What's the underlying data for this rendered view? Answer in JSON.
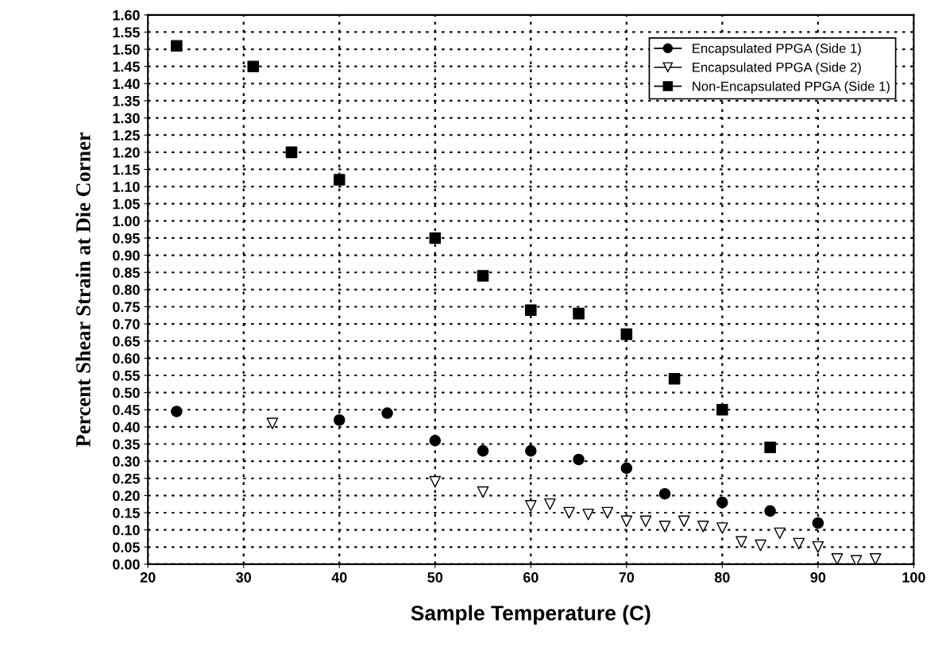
{
  "chart_data": {
    "type": "scatter",
    "xlabel": "Sample Temperature (C)",
    "ylabel": "Percent Shear Strain at Die Corner",
    "xlim": [
      20,
      100
    ],
    "xticks": [
      20,
      30,
      40,
      50,
      60,
      70,
      80,
      90,
      100
    ],
    "ylim": [
      0,
      1.6
    ],
    "yticks": [
      {
        "value": 0,
        "label": "0.00"
      },
      {
        "value": 0.05,
        "label": "0.05"
      },
      {
        "value": 0.1,
        "label": "0.10"
      },
      {
        "value": 0.15,
        "label": "0.15"
      },
      {
        "value": 0.2,
        "label": "0.20"
      },
      {
        "value": 0.25,
        "label": "0.25"
      },
      {
        "value": 0.3,
        "label": "0.30"
      },
      {
        "value": 0.35,
        "label": "0.35"
      },
      {
        "value": 0.4,
        "label": "0.40"
      },
      {
        "value": 0.45,
        "label": "0.45"
      },
      {
        "value": 0.5,
        "label": "0.50"
      },
      {
        "value": 0.55,
        "label": "0.55"
      },
      {
        "value": 0.6,
        "label": "0.60"
      },
      {
        "value": 0.65,
        "label": "0.65"
      },
      {
        "value": 0.7,
        "label": "0.70"
      },
      {
        "value": 0.75,
        "label": "0.75"
      },
      {
        "value": 0.8,
        "label": "0.80"
      },
      {
        "value": 0.85,
        "label": "0.85"
      },
      {
        "value": 0.9,
        "label": "0.90"
      },
      {
        "value": 0.95,
        "label": "0.95"
      },
      {
        "value": 1.0,
        "label": "1.00"
      },
      {
        "value": 1.05,
        "label": "1.05"
      },
      {
        "value": 1.1,
        "label": "1.10"
      },
      {
        "value": 1.15,
        "label": "1.15"
      },
      {
        "value": 1.2,
        "label": "1.20"
      },
      {
        "value": 1.25,
        "label": "1.25"
      },
      {
        "value": 1.3,
        "label": "1.30"
      },
      {
        "value": 1.35,
        "label": "1.35"
      },
      {
        "value": 1.4,
        "label": "1.40"
      },
      {
        "value": 1.45,
        "label": "1.45"
      },
      {
        "value": 1.5,
        "label": "1.50"
      },
      {
        "value": 1.55,
        "label": "1.55"
      },
      {
        "value": 1.6,
        "label": "1.60"
      }
    ],
    "grid": true,
    "legend": "top right",
    "series": [
      {
        "name": "Encapsulated PPGA (Side 1)",
        "color": "#000000",
        "marker": "circle",
        "x": [
          23,
          40,
          45,
          50,
          55,
          60,
          65,
          70,
          74,
          80,
          85,
          90
        ],
        "values": [
          0.445,
          0.42,
          0.44,
          0.36,
          0.33,
          0.33,
          0.305,
          0.28,
          0.205,
          0.18,
          0.155,
          0.12
        ]
      },
      {
        "name": "Encapsulated PPGA (Side 2)",
        "color": "#000000",
        "marker": "triangle",
        "x": [
          33,
          50,
          55,
          60,
          62,
          64,
          66,
          68,
          70,
          72,
          74,
          76,
          78,
          80,
          82,
          84,
          86,
          88,
          90,
          92,
          94,
          96
        ],
        "values": [
          0.41,
          0.24,
          0.21,
          0.17,
          0.175,
          0.15,
          0.145,
          0.15,
          0.125,
          0.125,
          0.11,
          0.125,
          0.11,
          0.105,
          0.065,
          0.055,
          0.09,
          0.06,
          0.05,
          0.015,
          0.01,
          0.015
        ]
      },
      {
        "name": "Non-Encapsulated PPGA (Side 1)",
        "color": "#000000",
        "marker": "square",
        "x": [
          23,
          31,
          35,
          40,
          50,
          55,
          60,
          65,
          70,
          75,
          80,
          85
        ],
        "values": [
          1.51,
          1.45,
          1.2,
          1.12,
          0.95,
          0.84,
          0.74,
          0.73,
          0.67,
          0.54,
          0.45,
          0.34
        ]
      }
    ]
  }
}
